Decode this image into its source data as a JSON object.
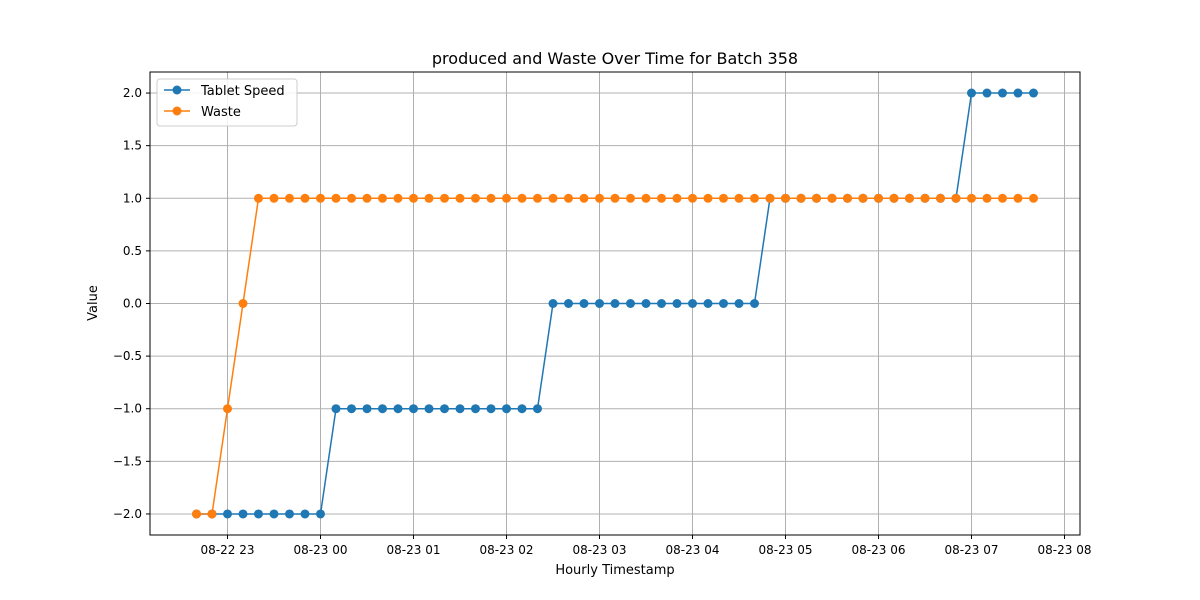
{
  "chart_data": {
    "type": "line",
    "title": "produced and Waste Over Time for Batch 358",
    "xlabel": "Hourly Timestamp",
    "ylabel": "Value",
    "x_unit": "time (08-22 22:00 to 08-23 08:00)",
    "xlim": [
      "08-22 22:10",
      "08-23 08:10"
    ],
    "ylim": [
      -2.2,
      2.2
    ],
    "x_ticks": [
      "08-22 23",
      "08-23 00",
      "08-23 01",
      "08-23 02",
      "08-23 03",
      "08-23 04",
      "08-23 05",
      "08-23 06",
      "08-23 07",
      "08-23 08"
    ],
    "y_ticks": [
      "2.0",
      "1.5",
      "1.0",
      "0.5",
      "0.0",
      "−0.5",
      "−1.0",
      "−1.5",
      "−2.0"
    ],
    "y_tick_values": [
      2.0,
      1.5,
      1.0,
      0.5,
      0.0,
      -0.5,
      -1.0,
      -1.5,
      -2.0
    ],
    "grid": true,
    "legend_position": "top-left",
    "x": [
      "08-22 22:40",
      "08-22 22:50",
      "08-22 23:00",
      "08-22 23:10",
      "08-22 23:20",
      "08-22 23:30",
      "08-22 23:40",
      "08-22 23:50",
      "08-23 00:00",
      "08-23 00:10",
      "08-23 00:20",
      "08-23 00:30",
      "08-23 00:40",
      "08-23 00:50",
      "08-23 01:00",
      "08-23 01:10",
      "08-23 01:20",
      "08-23 01:30",
      "08-23 01:40",
      "08-23 01:50",
      "08-23 02:00",
      "08-23 02:10",
      "08-23 02:20",
      "08-23 02:30",
      "08-23 02:40",
      "08-23 02:50",
      "08-23 03:00",
      "08-23 03:10",
      "08-23 03:20",
      "08-23 03:30",
      "08-23 03:40",
      "08-23 03:50",
      "08-23 04:00",
      "08-23 04:10",
      "08-23 04:20",
      "08-23 04:30",
      "08-23 04:40",
      "08-23 04:50",
      "08-23 05:00",
      "08-23 05:10",
      "08-23 05:20",
      "08-23 05:30",
      "08-23 05:40",
      "08-23 05:50",
      "08-23 06:00",
      "08-23 06:10",
      "08-23 06:20",
      "08-23 06:30",
      "08-23 06:40",
      "08-23 06:50",
      "08-23 07:00",
      "08-23 07:10",
      "08-23 07:20",
      "08-23 07:30",
      "08-23 07:40"
    ],
    "series": [
      {
        "name": "Tablet Speed",
        "color": "#1f77b4",
        "values": [
          -2,
          -2,
          -2,
          -2,
          -2,
          -2,
          -2,
          -2,
          -2,
          -1,
          -1,
          -1,
          -1,
          -1,
          -1,
          -1,
          -1,
          -1,
          -1,
          -1,
          -1,
          -1,
          -1,
          0,
          0,
          0,
          0,
          0,
          0,
          0,
          0,
          0,
          0,
          0,
          0,
          0,
          0,
          1,
          1,
          1,
          1,
          1,
          1,
          1,
          1,
          1,
          1,
          1,
          1,
          1,
          2,
          2,
          2,
          2,
          2
        ]
      },
      {
        "name": "Waste",
        "color": "#ff7f0e",
        "values": [
          -2,
          -2,
          -1,
          0,
          1,
          1,
          1,
          1,
          1,
          1,
          1,
          1,
          1,
          1,
          1,
          1,
          1,
          1,
          1,
          1,
          1,
          1,
          1,
          1,
          1,
          1,
          1,
          1,
          1,
          1,
          1,
          1,
          1,
          1,
          1,
          1,
          1,
          1,
          1,
          1,
          1,
          1,
          1,
          1,
          1,
          1,
          1,
          1,
          1,
          1,
          1,
          1,
          1,
          1,
          1
        ]
      }
    ]
  }
}
